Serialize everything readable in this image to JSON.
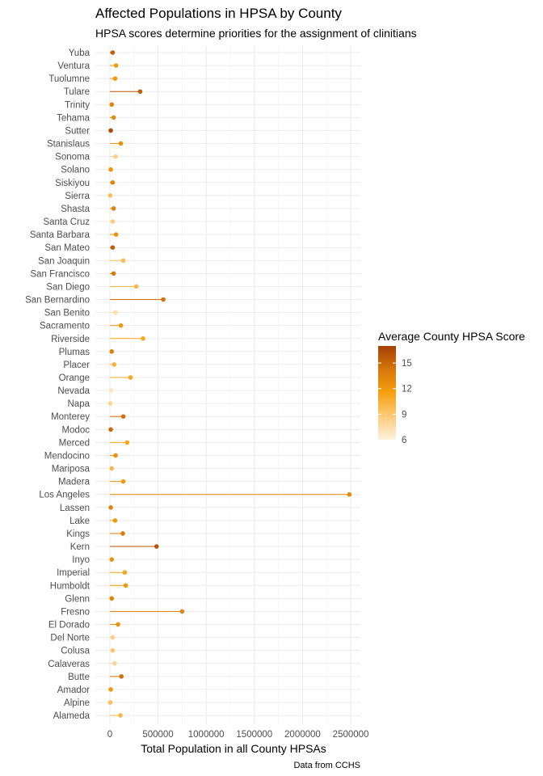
{
  "chart_data": {
    "type": "lollipop",
    "title": "Affected Populations in HPSA by County",
    "subtitle": "HPSA scores determine priorities for the assignment of clinitians",
    "xlabel": "Total Population in all County HPSAs",
    "caption": "Data from CCHS",
    "xlim": [
      -150000,
      2600000
    ],
    "x_ticks": [
      0,
      500000,
      1000000,
      1500000,
      2000000,
      2500000
    ],
    "x_tick_labels": [
      "0",
      "500000",
      "1000000",
      "1500000",
      "2000000",
      "2500000"
    ],
    "grid": true,
    "legend": {
      "title": "Average County HPSA Score",
      "placement": "right",
      "min": 6,
      "max": 17,
      "ticks": [
        6,
        9,
        12,
        15
      ],
      "tick_labels": [
        "6",
        "9",
        "12",
        "15"
      ],
      "colors": [
        "#fdf3df",
        "#feca7a",
        "#f5a00f",
        "#d6780b",
        "#a44105"
      ]
    },
    "categories": [
      "Yuba",
      "Ventura",
      "Tuolumne",
      "Tulare",
      "Trinity",
      "Tehama",
      "Sutter",
      "Stanislaus",
      "Sonoma",
      "Solano",
      "Siskiyou",
      "Sierra",
      "Shasta",
      "Santa Cruz",
      "Santa Barbara",
      "San Mateo",
      "San Joaquin",
      "San Francisco",
      "San Diego",
      "San Bernardino",
      "San Benito",
      "Sacramento",
      "Riverside",
      "Plumas",
      "Placer",
      "Orange",
      "Nevada",
      "Napa",
      "Monterey",
      "Modoc",
      "Merced",
      "Mendocino",
      "Mariposa",
      "Madera",
      "Los Angeles",
      "Lassen",
      "Lake",
      "Kings",
      "Kern",
      "Inyo",
      "Imperial",
      "Humboldt",
      "Glenn",
      "Fresno",
      "El Dorado",
      "Del Norte",
      "Colusa",
      "Calaveras",
      "Butte",
      "Amador",
      "Alpine",
      "Alameda"
    ],
    "values": [
      30000,
      65000,
      55000,
      315000,
      20000,
      40000,
      10000,
      115000,
      60000,
      10000,
      30000,
      5000,
      40000,
      30000,
      65000,
      30000,
      140000,
      40000,
      275000,
      555000,
      60000,
      115000,
      345000,
      20000,
      45000,
      215000,
      15000,
      5000,
      140000,
      10000,
      180000,
      60000,
      20000,
      140000,
      2485000,
      10000,
      55000,
      135000,
      485000,
      20000,
      155000,
      165000,
      20000,
      750000,
      85000,
      30000,
      30000,
      50000,
      120000,
      10000,
      5000,
      110000
    ],
    "scores": [
      15.5,
      12,
      12,
      15.5,
      13.5,
      13,
      16.5,
      12.5,
      8.5,
      12,
      13.5,
      9.5,
      13.5,
      8.5,
      12.5,
      15.5,
      9.5,
      14,
      10,
      14.5,
      7.5,
      12,
      11,
      13.5,
      10.5,
      11,
      7,
      8,
      14.5,
      15,
      11,
      12.5,
      10,
      12,
      13,
      13.5,
      12,
      14,
      16,
      12.5,
      11,
      12,
      13.5,
      13.5,
      12.5,
      8.5,
      9,
      8,
      14.5,
      12,
      9.5,
      10
    ]
  }
}
